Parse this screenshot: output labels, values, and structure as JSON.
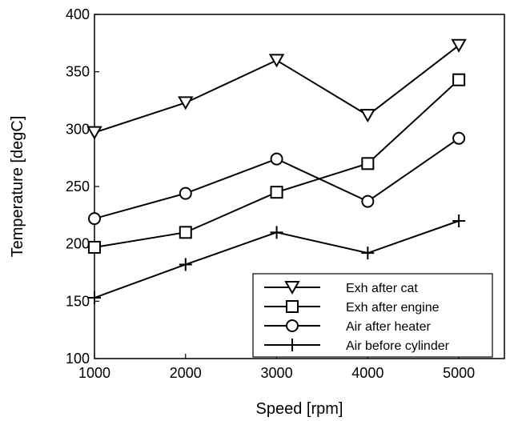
{
  "chart_data": {
    "type": "line",
    "title": "",
    "xlabel": "Speed [rpm]",
    "ylabel": "Temperature [degC]",
    "x": [
      1000,
      2000,
      3000,
      4000,
      5000
    ],
    "xlim": [
      1000,
      5500
    ],
    "ylim": [
      100,
      400
    ],
    "xticks": [
      1000,
      2000,
      3000,
      4000,
      5000
    ],
    "yticks": [
      100,
      150,
      200,
      250,
      300,
      350,
      400
    ],
    "grid": false,
    "legend_position": "bottom-right",
    "series": [
      {
        "name": "Exh after cat",
        "marker": "triangle-down",
        "color": "#000000",
        "values": [
          297,
          323,
          360,
          312,
          373
        ]
      },
      {
        "name": "Exh after engine",
        "marker": "square",
        "color": "#000000",
        "values": [
          197,
          210,
          245,
          270,
          343
        ]
      },
      {
        "name": "Air after heater",
        "marker": "circle",
        "color": "#000000",
        "values": [
          222,
          244,
          274,
          237,
          292
        ]
      },
      {
        "name": "Air before cylinder",
        "marker": "plus",
        "color": "#000000",
        "values": [
          153,
          182,
          210,
          192,
          220
        ]
      }
    ]
  }
}
